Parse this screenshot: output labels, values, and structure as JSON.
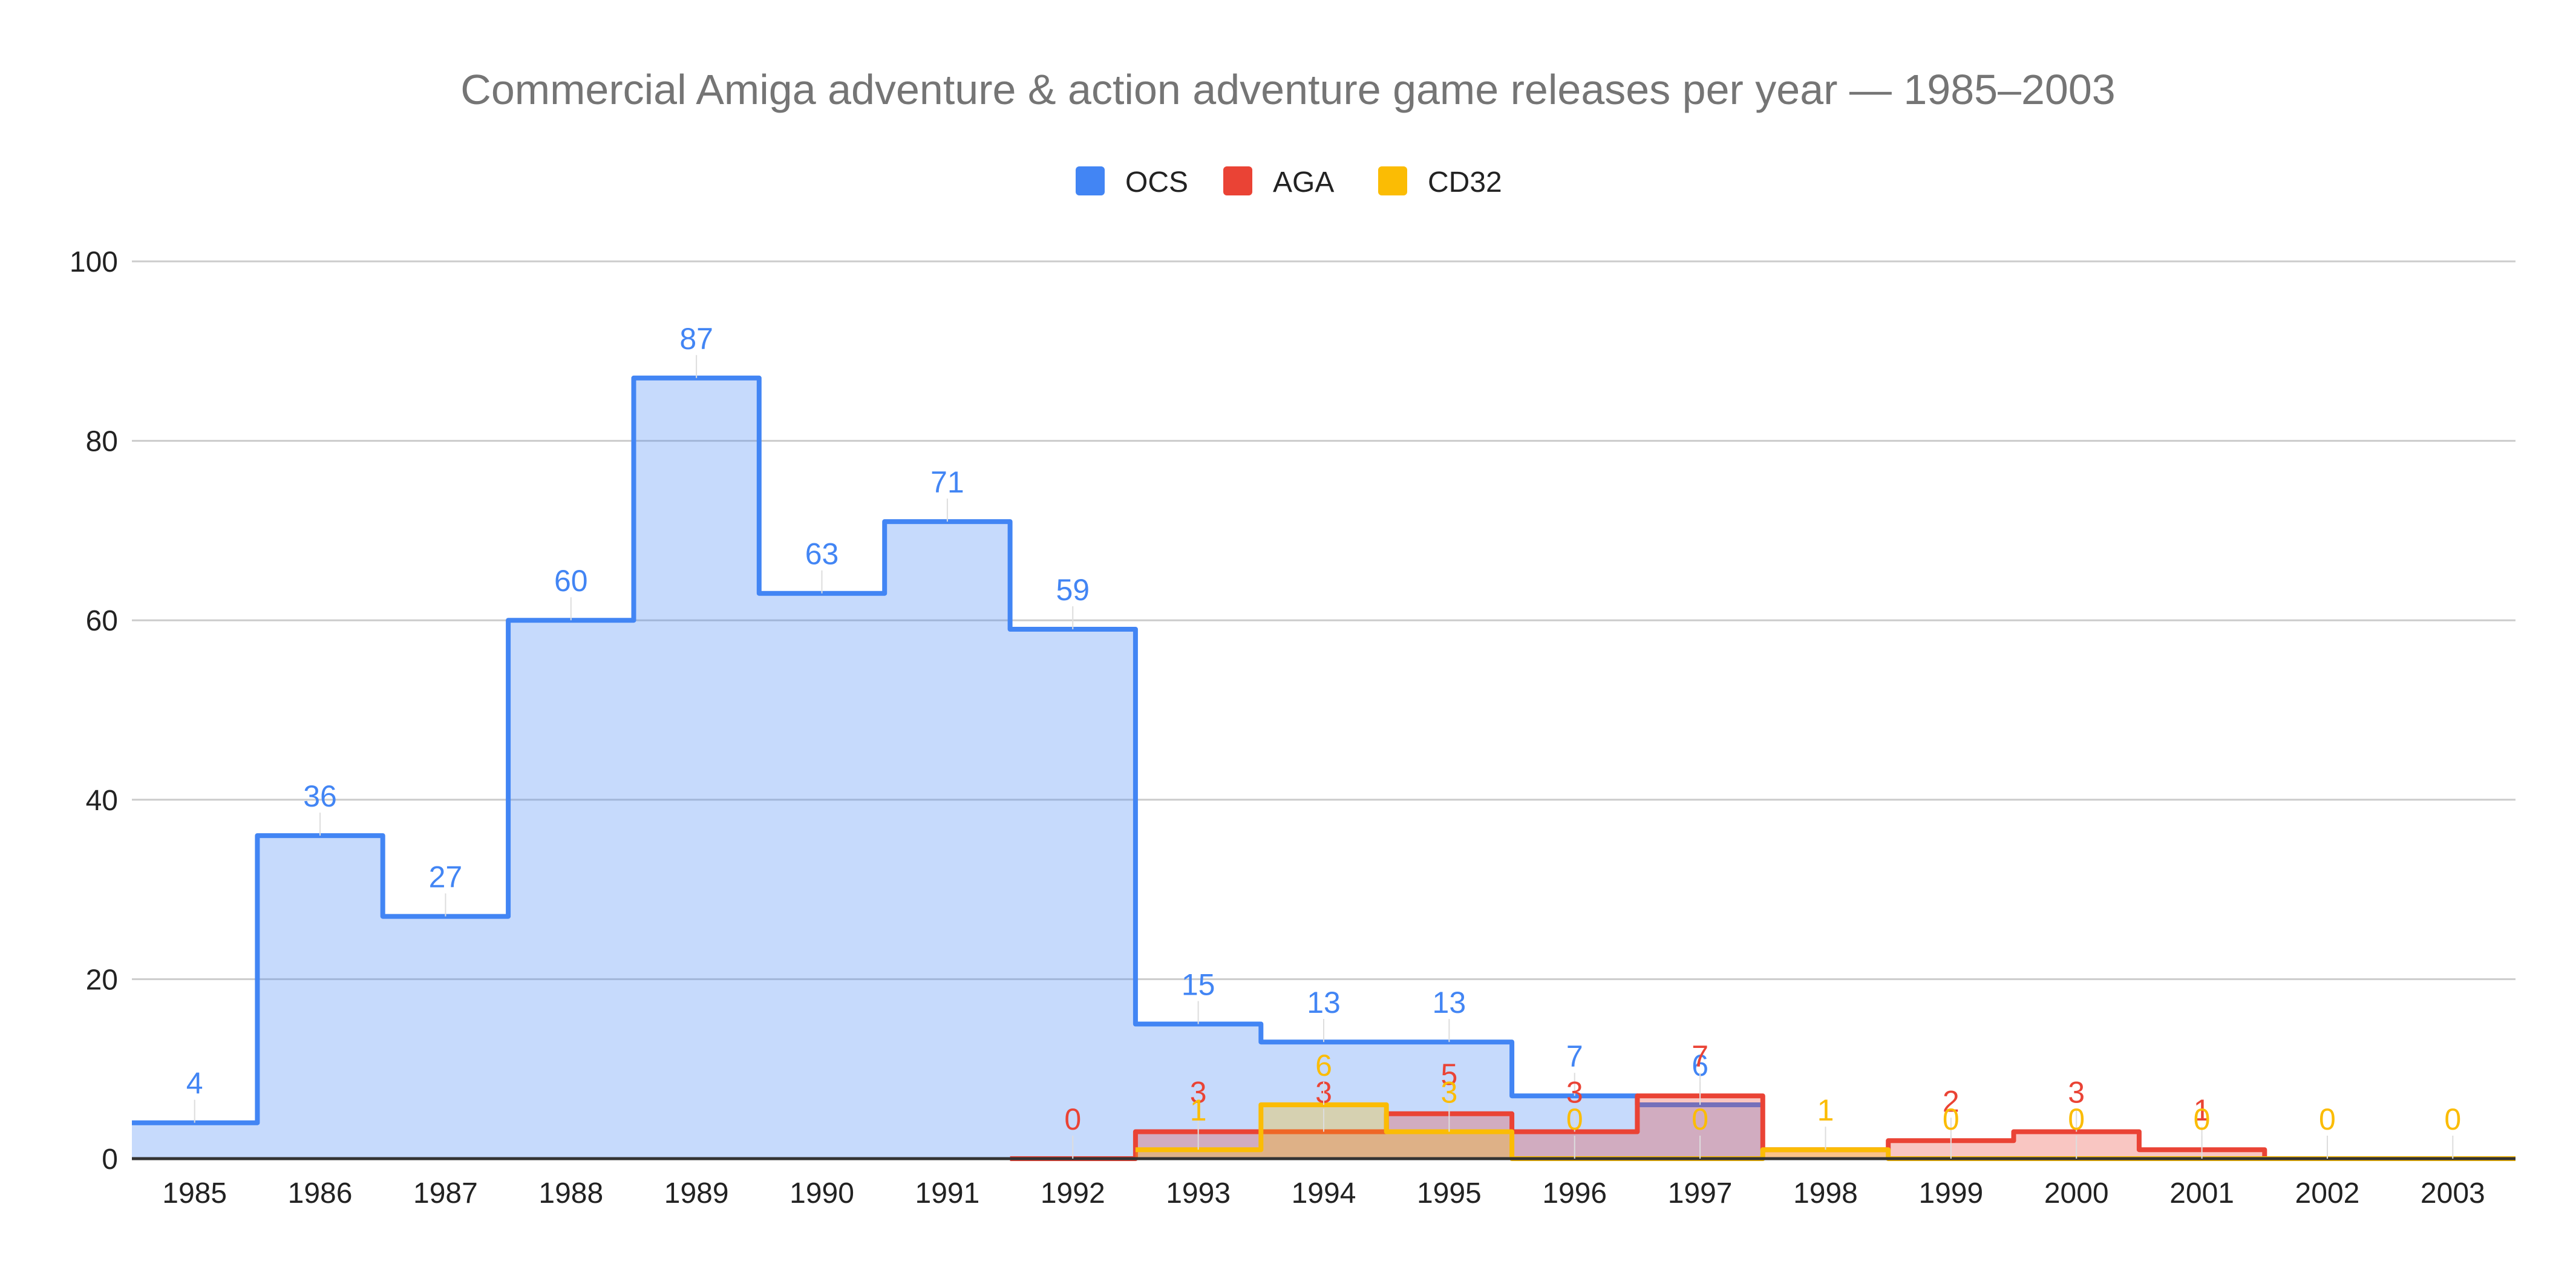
{
  "chart_data": {
    "type": "area",
    "title": "Commercial Amiga adventure & action adventure game releases per year — 1985–2003",
    "xlabel": "",
    "ylabel": "",
    "ylim": [
      0,
      100
    ],
    "yticks": [
      "0",
      "20",
      "40",
      "60",
      "80",
      "100"
    ],
    "grid": true,
    "legend_position": "top",
    "categories": [
      "1985",
      "1986",
      "1987",
      "1988",
      "1989",
      "1990",
      "1991",
      "1992",
      "1993",
      "1994",
      "1995",
      "1996",
      "1997",
      "1998",
      "1999",
      "2000",
      "2001",
      "2002",
      "2003"
    ],
    "series": [
      {
        "name": "OCS",
        "color": "#4285f4",
        "fill": "#c6d9f8",
        "values": [
          4,
          36,
          27,
          60,
          87,
          63,
          71,
          59,
          15,
          13,
          13,
          7,
          6,
          null,
          null,
          null,
          null,
          null,
          null
        ],
        "labels": [
          "4",
          "36",
          "27",
          "60",
          "87",
          "63",
          "71",
          "59",
          "15",
          "13",
          "13",
          "7",
          "6",
          "",
          "",
          "",
          "",
          "",
          ""
        ]
      },
      {
        "name": "AGA",
        "color": "#ea4335",
        "fill": "#f6c0bc",
        "values": [
          null,
          null,
          null,
          null,
          null,
          null,
          null,
          0,
          3,
          3,
          5,
          3,
          7,
          1,
          2,
          3,
          1,
          0,
          0
        ],
        "labels": [
          "",
          "",
          "",
          "",
          "",
          "",
          "",
          "0",
          "3",
          "3",
          "5",
          "3",
          "7",
          "",
          "2",
          "3",
          "1",
          "",
          ""
        ]
      },
      {
        "name": "CD32",
        "color": "#fbbc04",
        "fill": "#fce8b2",
        "values": [
          null,
          null,
          null,
          null,
          null,
          null,
          null,
          null,
          1,
          6,
          3,
          0,
          0,
          1,
          0,
          0,
          0,
          0,
          0
        ],
        "labels": [
          "",
          "",
          "",
          "",
          "",
          "",
          "",
          "",
          "1",
          "6",
          "3",
          "0",
          "0",
          "1",
          "0",
          "0",
          "0",
          "0",
          "0"
        ]
      }
    ]
  }
}
